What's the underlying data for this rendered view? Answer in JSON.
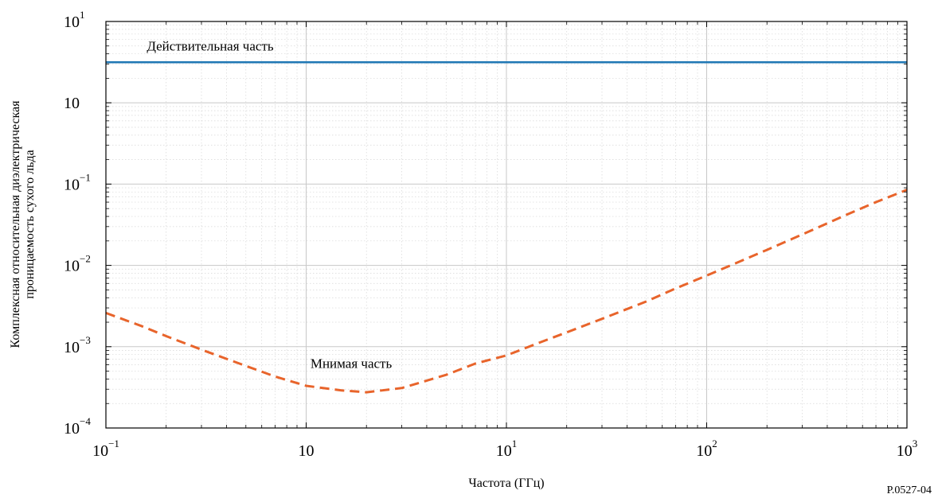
{
  "chart_data": {
    "type": "line",
    "xscale": "log",
    "yscale": "log",
    "xlim": [
      0.1,
      1000
    ],
    "ylim": [
      0.0001,
      10
    ],
    "grid": true,
    "grid_minor": true,
    "xlabel": "Частота (ГГц)",
    "ylabel_lines": [
      "Комплексная относительная диэлектрическая",
      "проницаемость сухого льда"
    ],
    "x_ticks": [
      {
        "value": 0.1,
        "base": "10",
        "exp": "−1"
      },
      {
        "value": 1,
        "base": "10",
        "exp": ""
      },
      {
        "value": 10,
        "base": "10",
        "exp": "1"
      },
      {
        "value": 100,
        "base": "10",
        "exp": "2"
      },
      {
        "value": 1000,
        "base": "10",
        "exp": "3"
      }
    ],
    "y_ticks": [
      {
        "value": 0.0001,
        "base": "10",
        "exp": "−4"
      },
      {
        "value": 0.001,
        "base": "10",
        "exp": "−3"
      },
      {
        "value": 0.01,
        "base": "10",
        "exp": "−2"
      },
      {
        "value": 0.1,
        "base": "10",
        "exp": "−1"
      },
      {
        "value": 1,
        "base": "10",
        "exp": ""
      },
      {
        "value": 10,
        "base": "10",
        "exp": "1"
      }
    ],
    "series": [
      {
        "name": "Действительная часть",
        "color": "#1f77b4",
        "style": "solid",
        "x": [
          0.1,
          1000
        ],
        "y": [
          3.15,
          3.15
        ]
      },
      {
        "name": "Мнимая часть",
        "color": "#e8642b",
        "style": "dashed",
        "x": [
          0.1,
          0.15,
          0.2,
          0.3,
          0.5,
          0.7,
          1,
          1.5,
          2,
          3,
          5,
          7,
          10,
          15,
          20,
          30,
          50,
          70,
          100,
          200,
          300,
          500,
          700,
          1000
        ],
        "y": [
          0.0026,
          0.0018,
          0.00135,
          0.00092,
          0.00058,
          0.00043,
          0.00033,
          0.00029,
          0.000275,
          0.00031,
          0.00045,
          0.00062,
          0.00078,
          0.00115,
          0.0015,
          0.0022,
          0.0036,
          0.0052,
          0.0075,
          0.0155,
          0.024,
          0.042,
          0.06,
          0.085
        ]
      }
    ],
    "annotations": [
      {
        "text": "Действительная часть",
        "x": 0.16,
        "y": 4.4
      },
      {
        "text": "Мнимая часть",
        "x": 1.05,
        "y": 0.00055
      }
    ],
    "figure_ref": "P.0527-04"
  }
}
